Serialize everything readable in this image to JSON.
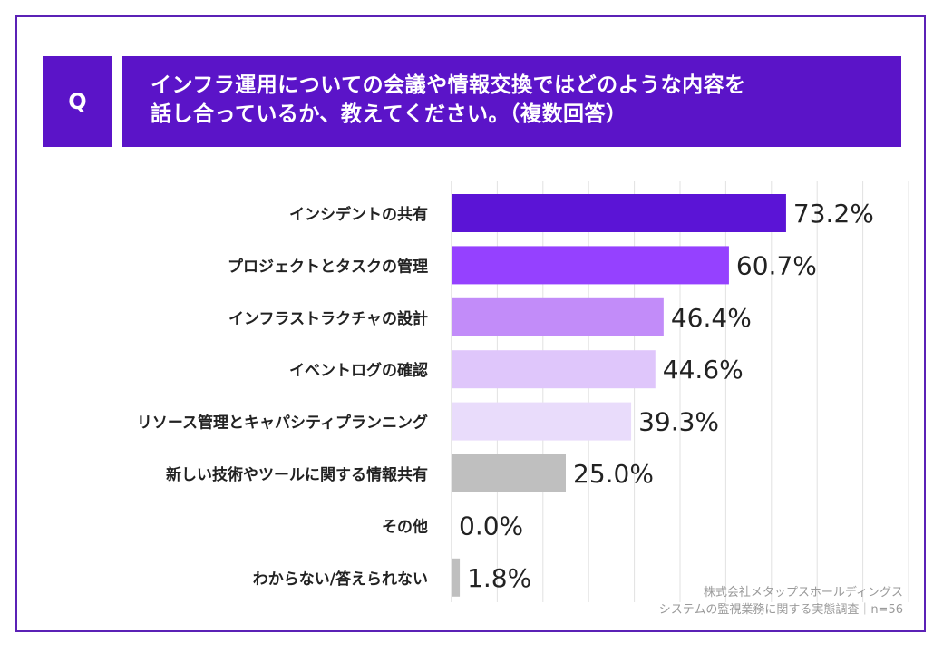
{
  "question": {
    "badge": "Q",
    "line1": "インフラ運用についての会議や情報交換ではどのような内容を",
    "line2": "話し合っているか、教えてください。（複数回答）"
  },
  "source": {
    "line1": "株式会社メタップスホールディングス",
    "line2": "システムの監視業務に関する実態調査｜n=56"
  },
  "colors": {
    "header_bg": "#5b14c8",
    "frame": "#5b21b6",
    "grid": "#e2e2e2"
  },
  "chart_data": {
    "type": "bar",
    "orientation": "horizontal",
    "categories": [
      "インシデントの共有",
      "プロジェクトとタスクの管理",
      "インフラストラクチャの設計",
      "イベントログの確認",
      "リソース管理とキャパシティプランニング",
      "新しい技術やツールに関する情報共有",
      "その他",
      "わからない/答えられない"
    ],
    "values": [
      73.2,
      60.7,
      46.4,
      44.6,
      39.3,
      25.0,
      0.0,
      1.8
    ],
    "value_labels": [
      "73.2%",
      "60.7%",
      "46.4%",
      "44.6%",
      "39.3%",
      "25.0%",
      "0.0%",
      "1.8%"
    ],
    "bar_colors": [
      "#5b14d6",
      "#9541ff",
      "#c28cf9",
      "#dfc6fb",
      "#e9dcfb",
      "#bfbfbf",
      "#bfbfbf",
      "#bfbfbf"
    ],
    "xlim": [
      0,
      100
    ],
    "grid": true,
    "legend": "none"
  }
}
